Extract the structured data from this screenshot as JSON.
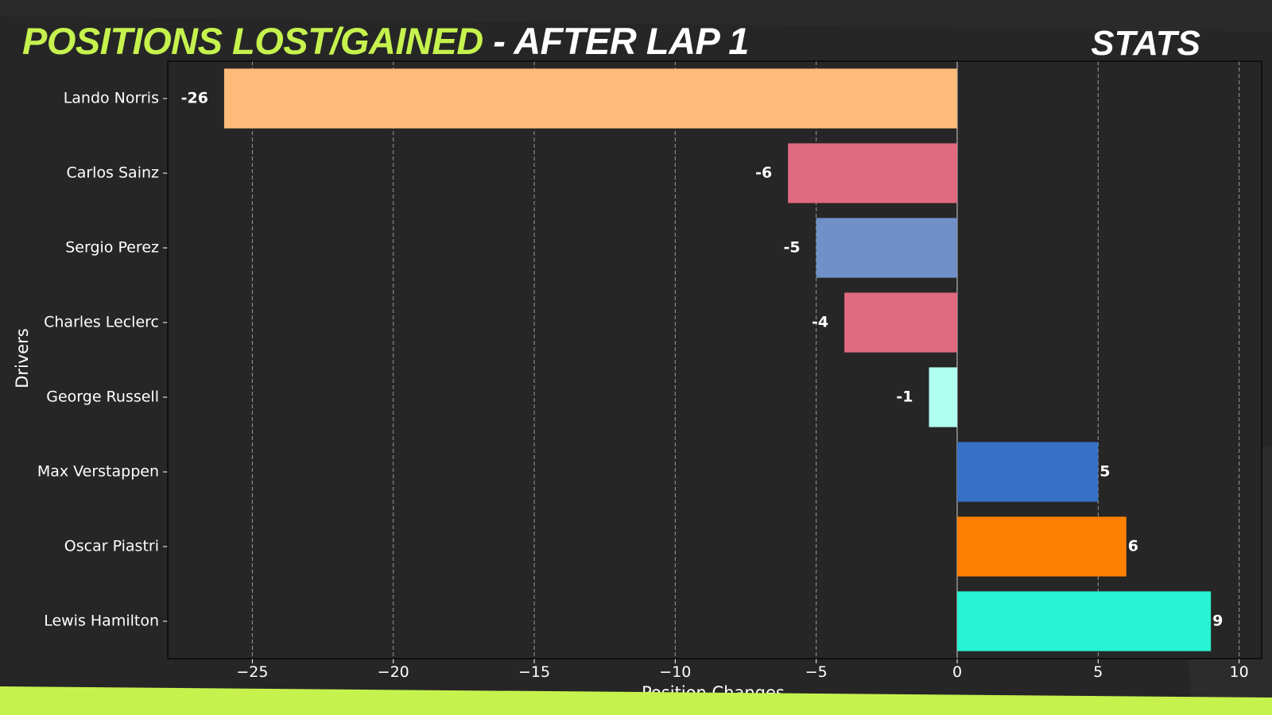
{
  "header": {
    "title_highlight": "POSITIONS LOST/GAINED",
    "title_rest": " - AFTER LAP 1",
    "brand": "STATS"
  },
  "colors": {
    "background": "#262626",
    "accent": "#c6f24e",
    "text": "#ffffff"
  },
  "chart_data": {
    "type": "bar",
    "orientation": "horizontal",
    "title": "",
    "xlabel": "Position Changes",
    "ylabel": "Drivers",
    "xlim": [
      -28,
      10.8
    ],
    "xticks": [
      -25,
      -20,
      -15,
      -10,
      -5,
      0,
      5,
      10
    ],
    "xtick_labels": [
      "−25",
      "−20",
      "−15",
      "−10",
      "−5",
      "0",
      "5",
      "10"
    ],
    "grid": "x dashed",
    "categories": [
      "Lando Norris",
      "Carlos Sainz",
      "Sergio Perez",
      "Charles Leclerc",
      "George Russell",
      "Max Verstappen",
      "Oscar Piastri",
      "Lewis Hamilton"
    ],
    "values": [
      -26,
      -6,
      -5,
      -4,
      -1,
      5,
      6,
      9
    ],
    "value_labels": [
      "-26",
      "-6",
      "-5",
      "-4",
      "-1",
      "5",
      "6",
      "9"
    ],
    "bar_colors": [
      "#ffbb7a",
      "#e06a80",
      "#6f91c8",
      "#e06a80",
      "#aefff0",
      "#3671c6",
      "#ff8000",
      "#27f4d2"
    ]
  }
}
